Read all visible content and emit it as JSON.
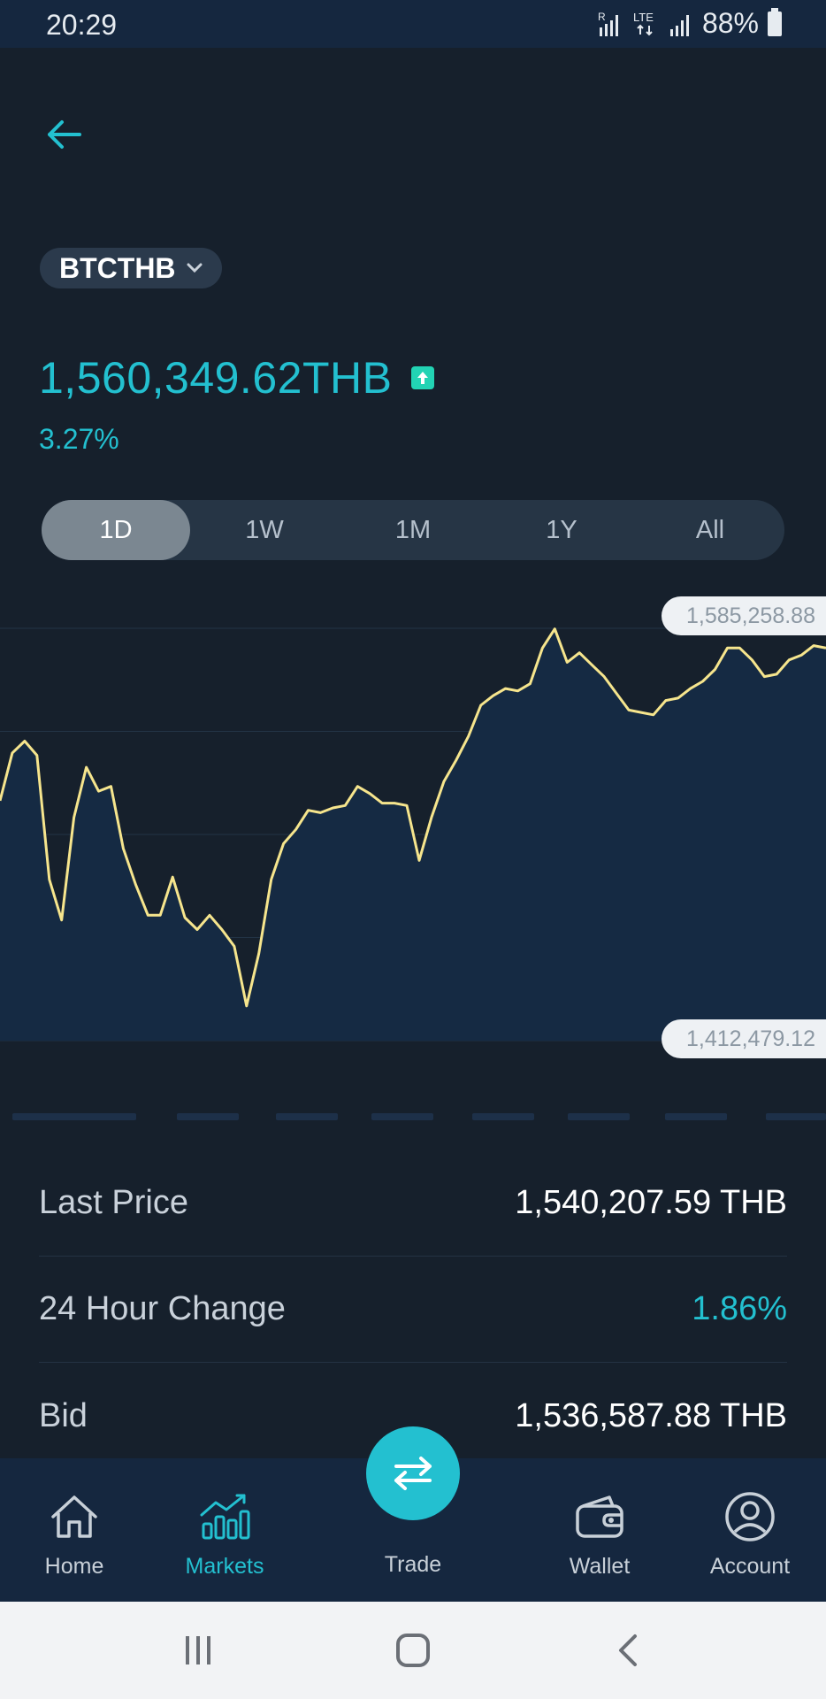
{
  "status_bar": {
    "time": "20:29",
    "battery": "88%",
    "signal_label": "R",
    "network_type": "LTE"
  },
  "pair": {
    "symbol": "BTCTHB"
  },
  "ticker": {
    "price": "1,560,349.62THB",
    "change": "3.27%"
  },
  "range_tabs": [
    {
      "label": "1D",
      "active": true
    },
    {
      "label": "1W",
      "active": false
    },
    {
      "label": "1M",
      "active": false
    },
    {
      "label": "1Y",
      "active": false
    },
    {
      "label": "All",
      "active": false
    }
  ],
  "chart_data": {
    "type": "area",
    "max_label": "1,585,258.88",
    "min_label": "1,412,479.12",
    "ylim": [
      1412479.12,
      1585258.88
    ],
    "grid": true,
    "values": [
      1513000,
      1533000,
      1538000,
      1532000,
      1480000,
      1463000,
      1506000,
      1527000,
      1517000,
      1519000,
      1493000,
      1478000,
      1465000,
      1465000,
      1481000,
      1464000,
      1459000,
      1465000,
      1459000,
      1452000,
      1427000,
      1449000,
      1480000,
      1495000,
      1501000,
      1509000,
      1508000,
      1510000,
      1511000,
      1519000,
      1516000,
      1512000,
      1512000,
      1511000,
      1488000,
      1506000,
      1521000,
      1530000,
      1540000,
      1553000,
      1557000,
      1560000,
      1559000,
      1562000,
      1577000,
      1585000,
      1571000,
      1575000,
      1570000,
      1565000,
      1558000,
      1551000,
      1550000,
      1549000,
      1555000,
      1556000,
      1560000,
      1563000,
      1568000,
      1577000,
      1577000,
      1572000,
      1565000,
      1566000,
      1572000,
      1574000,
      1578000,
      1577000
    ]
  },
  "stats": [
    {
      "label": "Last Price",
      "value": "1,540,207.59 THB",
      "accent": false
    },
    {
      "label": "24 Hour Change",
      "value": "1.86%",
      "accent": true
    },
    {
      "label": "Bid",
      "value": "1,536,587.88 THB",
      "accent": false
    }
  ],
  "nav": {
    "home": "Home",
    "markets": "Markets",
    "trade": "Trade",
    "wallet": "Wallet",
    "account": "Account"
  },
  "colors": {
    "background": "#16202c",
    "accent": "#23c0d0",
    "chart_line": "#f6e58d",
    "nav_background": "#15273f"
  }
}
